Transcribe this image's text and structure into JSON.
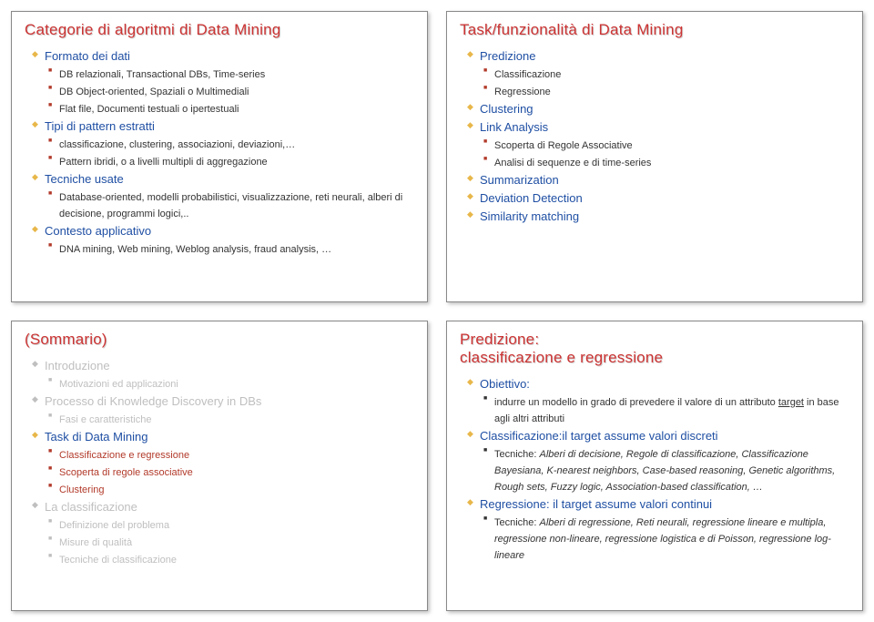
{
  "colors": {
    "title_red": "#cc3333",
    "level1_blue": "#1f4fa3",
    "level2_default": "#333333",
    "level2_red": "#b23a2a",
    "faded_grey": "#bfbfbf"
  },
  "slides": {
    "tl": {
      "title": "Categorie di algoritmi di Data Mining",
      "title_color": "#cc3333",
      "bullet_color": "#e8b74a",
      "items": [
        {
          "label": "Formato dei dati",
          "color": "#1f4fa3",
          "sub_bullet_color": "#b23a2a",
          "sub": [
            {
              "label": "DB relazionali, Transactional DBs, Time-series",
              "color": "#333333"
            },
            {
              "label": "DB Object-oriented, Spaziali o Multimediali",
              "color": "#333333"
            },
            {
              "label": "Flat file, Documenti testuali o ipertestuali",
              "color": "#333333"
            }
          ]
        },
        {
          "label": "Tipi di pattern estratti",
          "color": "#1f4fa3",
          "sub_bullet_color": "#b23a2a",
          "sub": [
            {
              "label": "classificazione, clustering, associazioni, deviazioni,…",
              "color": "#333333"
            },
            {
              "label": "Pattern ibridi, o a livelli multipli di aggregazione",
              "color": "#333333"
            }
          ]
        },
        {
          "label": "Tecniche usate",
          "color": "#1f4fa3",
          "sub_bullet_color": "#b23a2a",
          "sub": [
            {
              "label": "Database-oriented, modelli probabilistici, visualizzazione, reti neurali, alberi di decisione, programmi logici,..",
              "color": "#333333"
            }
          ]
        },
        {
          "label": "Contesto applicativo",
          "color": "#1f4fa3",
          "sub_bullet_color": "#b23a2a",
          "sub": [
            {
              "label": "DNA mining, Web mining, Weblog analysis, fraud analysis, …",
              "color": "#333333"
            }
          ]
        }
      ]
    },
    "tr": {
      "title": "Task/funzionalità di Data Mining",
      "title_color": "#cc3333",
      "bullet_color": "#e8b74a",
      "items": [
        {
          "label": "Predizione",
          "color": "#1f4fa3",
          "sub_bullet_color": "#b23a2a",
          "sub": [
            {
              "label": "Classificazione",
              "color": "#333333"
            },
            {
              "label": "Regressione",
              "color": "#333333"
            }
          ]
        },
        {
          "label": "Clustering",
          "color": "#1f4fa3",
          "sub": []
        },
        {
          "label": "Link Analysis",
          "color": "#1f4fa3",
          "sub_bullet_color": "#b23a2a",
          "sub": [
            {
              "label": "Scoperta di Regole Associative",
              "color": "#333333"
            },
            {
              "label": "Analisi di sequenze e di time-series",
              "color": "#333333"
            }
          ]
        },
        {
          "label": "Summarization",
          "color": "#1f4fa3",
          "sub": []
        },
        {
          "label": "Deviation Detection",
          "color": "#1f4fa3",
          "sub": []
        },
        {
          "label": "Similarity matching",
          "color": "#1f4fa3",
          "sub": []
        }
      ]
    },
    "bl": {
      "title": "(Sommario)",
      "title_color": "#cc3333",
      "bullet_color": "#e8b74a",
      "items": [
        {
          "label": "Introduzione",
          "color": "#bfbfbf",
          "faded": true,
          "sub_bullet_color": "#bfbfbf",
          "sub": [
            {
              "label": "Motivazioni ed applicazioni",
              "color": "#bfbfbf",
              "faded": true
            }
          ]
        },
        {
          "label": "Processo di Knowledge Discovery in DBs",
          "color": "#bfbfbf",
          "faded": true,
          "sub_bullet_color": "#bfbfbf",
          "sub": [
            {
              "label": "Fasi e caratteristiche",
              "color": "#bfbfbf",
              "faded": true
            }
          ]
        },
        {
          "label": "Task di Data Mining",
          "color": "#1f4fa3",
          "sub_bullet_color": "#b23a2a",
          "sub": [
            {
              "label": "Classificazione e regressione",
              "color": "#b23a2a"
            },
            {
              "label": "Scoperta di regole associative",
              "color": "#b23a2a"
            },
            {
              "label": "Clustering",
              "color": "#b23a2a"
            }
          ]
        },
        {
          "label": "La classificazione",
          "color": "#bfbfbf",
          "faded": true,
          "sub_bullet_color": "#bfbfbf",
          "sub": [
            {
              "label": "Definizione del problema",
              "color": "#bfbfbf",
              "faded": true
            },
            {
              "label": "Misure di qualità",
              "color": "#bfbfbf",
              "faded": true
            },
            {
              "label": "Tecniche di classificazione",
              "color": "#bfbfbf",
              "faded": true
            }
          ]
        }
      ]
    },
    "br": {
      "title": "Predizione:\nclassificazione e regressione",
      "title_color": "#cc3333",
      "bullet_color": "#e8b74a",
      "items": [
        {
          "label": "Obiettivo:",
          "color": "#1f4fa3",
          "sub_bullet_color": "#333333",
          "sub": [
            {
              "label": "indurre un modello in grado di prevedere il valore di un attributo target in base agli altri attributi",
              "color": "#333333",
              "underline_word": "target"
            }
          ]
        },
        {
          "label": "Classificazione:il target assume valori discreti",
          "color": "#1f4fa3",
          "sub_bullet_color": "#333333",
          "sub": [
            {
              "label": "Tecniche: Alberi di decisione, Regole di classificazione, Classificazione Bayesiana, K-nearest neighbors, Case-based reasoning, Genetic algorithms, Rough sets, Fuzzy logic, Association-based classification, …",
              "color": "#333333",
              "italic_after": "Tecniche:"
            }
          ]
        },
        {
          "label": "Regressione: il target assume valori continui",
          "color": "#1f4fa3",
          "sub_bullet_color": "#333333",
          "sub": [
            {
              "label": "Tecniche: Alberi di regressione, Reti neurali, regressione lineare e multipla, regressione non-lineare, regressione logistica e di Poisson, regressione log-lineare",
              "color": "#333333",
              "italic_after": "Tecniche:"
            }
          ]
        }
      ]
    }
  }
}
